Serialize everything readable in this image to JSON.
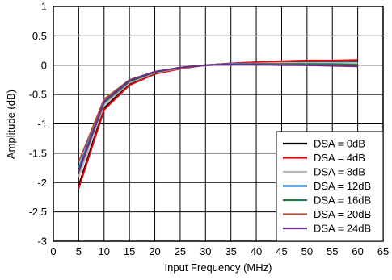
{
  "chart_data": {
    "type": "line",
    "xlabel": "Input Frequency (MHz)",
    "ylabel": "Amplitude (dB)",
    "xlim": [
      0,
      65
    ],
    "ylim": [
      -3,
      1
    ],
    "xticks": [
      "0",
      "5",
      "10",
      "15",
      "20",
      "25",
      "30",
      "35",
      "40",
      "45",
      "50",
      "55",
      "60",
      "65"
    ],
    "yticks": [
      "1",
      "0.5",
      "0",
      "-0.5",
      "-1",
      "-1.5",
      "-2",
      "-2.5",
      "-3"
    ],
    "grid": true,
    "legend_position": "bottom-right",
    "x": [
      5,
      10,
      15,
      20,
      25,
      30,
      35,
      40,
      45,
      50,
      55,
      60
    ],
    "series": [
      {
        "name": "DSA = 0dB",
        "color": "#000000",
        "values": [
          -2.05,
          -0.73,
          -0.32,
          -0.14,
          -0.05,
          0.0,
          0.03,
          0.05,
          0.06,
          0.07,
          0.07,
          0.07
        ]
      },
      {
        "name": "DSA = 4dB",
        "color": "#e8000b",
        "values": [
          -2.1,
          -0.76,
          -0.34,
          -0.15,
          -0.06,
          0.0,
          0.03,
          0.05,
          0.07,
          0.08,
          0.08,
          0.09
        ]
      },
      {
        "name": "DSA = 8dB",
        "color": "#b8b8b8",
        "values": [
          -1.9,
          -0.68,
          -0.3,
          -0.13,
          -0.05,
          0.0,
          0.02,
          0.03,
          0.04,
          0.04,
          0.04,
          0.04
        ]
      },
      {
        "name": "DSA = 12dB",
        "color": "#1d73c8",
        "values": [
          -1.75,
          -0.62,
          -0.27,
          -0.12,
          -0.04,
          0.0,
          0.02,
          0.02,
          0.02,
          0.02,
          0.02,
          0.01
        ]
      },
      {
        "name": "DSA = 16dB",
        "color": "#207a4a",
        "values": [
          -1.8,
          -0.64,
          -0.28,
          -0.12,
          -0.04,
          0.0,
          0.01,
          0.02,
          0.02,
          0.02,
          0.01,
          0.01
        ]
      },
      {
        "name": "DSA = 20dB",
        "color": "#a8553a",
        "values": [
          -1.65,
          -0.58,
          -0.25,
          -0.11,
          -0.04,
          0.0,
          0.01,
          0.01,
          0.01,
          0.0,
          0.0,
          -0.01
        ]
      },
      {
        "name": "DSA = 24dB",
        "color": "#6b2c8c",
        "values": [
          -1.82,
          -0.62,
          -0.26,
          -0.11,
          -0.04,
          0.0,
          0.01,
          0.01,
          0.0,
          0.0,
          -0.01,
          -0.02
        ]
      }
    ]
  }
}
